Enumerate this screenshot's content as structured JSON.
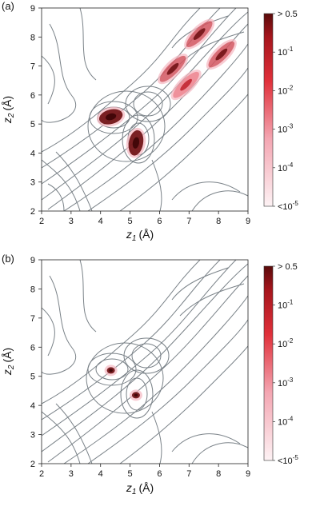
{
  "chart_data": [
    {
      "type": "heatmap",
      "panel_label": "(a)",
      "xlabel": "z1 (Å)",
      "ylabel": "z2 (Å)",
      "xlabel_var": "z",
      "xlabel_sub": "1",
      "xlabel_unit": "(Å)",
      "ylabel_var": "z",
      "ylabel_sub": "2",
      "ylabel_unit": "(Å)",
      "xlim": [
        2,
        9
      ],
      "ylim": [
        2,
        9
      ],
      "xticks": [
        2,
        3,
        4,
        5,
        6,
        7,
        8,
        9
      ],
      "yticks": [
        2,
        3,
        4,
        5,
        6,
        7,
        8,
        9
      ],
      "colorbar": {
        "scale": "log",
        "labels": [
          "> 0.5",
          "10-1",
          "10-2",
          "10-3",
          "10-4",
          "<10-5"
        ],
        "color_high": "#5a0b0b",
        "color_mid": "#e0303a",
        "color_low": "#fbe6ea"
      },
      "contour_color": "#7a8288",
      "regions": [
        {
          "x": 4.35,
          "y": 5.25,
          "level": 0.5
        },
        {
          "x": 5.2,
          "y": 4.35,
          "level": 0.5
        },
        {
          "x": 6.45,
          "y": 6.9,
          "level": 0.1
        },
        {
          "x": 7.35,
          "y": 8.1,
          "level": 0.1
        },
        {
          "x": 8.1,
          "y": 7.4,
          "level": 0.1
        },
        {
          "x": 6.9,
          "y": 6.35,
          "level": 0.01
        }
      ]
    },
    {
      "type": "heatmap",
      "panel_label": "(b)",
      "xlabel": "z1 (Å)",
      "ylabel": "z2 (Å)",
      "xlabel_var": "z",
      "xlabel_sub": "1",
      "xlabel_unit": "(Å)",
      "ylabel_var": "z",
      "ylabel_sub": "2",
      "ylabel_unit": "(Å)",
      "xlim": [
        2,
        9
      ],
      "ylim": [
        2,
        9
      ],
      "xticks": [
        2,
        3,
        4,
        5,
        6,
        7,
        8,
        9
      ],
      "yticks": [
        2,
        3,
        4,
        5,
        6,
        7,
        8,
        9
      ],
      "colorbar": {
        "scale": "log",
        "labels": [
          "> 0.5",
          "10-1",
          "10-2",
          "10-3",
          "10-4",
          "<10-5"
        ],
        "color_high": "#5a0b0b",
        "color_mid": "#e0303a",
        "color_low": "#fbe6ea"
      },
      "contour_color": "#7a8288",
      "regions": [
        {
          "x": 4.35,
          "y": 5.2,
          "level": 0.5
        },
        {
          "x": 5.2,
          "y": 4.35,
          "level": 0.5
        }
      ]
    }
  ]
}
